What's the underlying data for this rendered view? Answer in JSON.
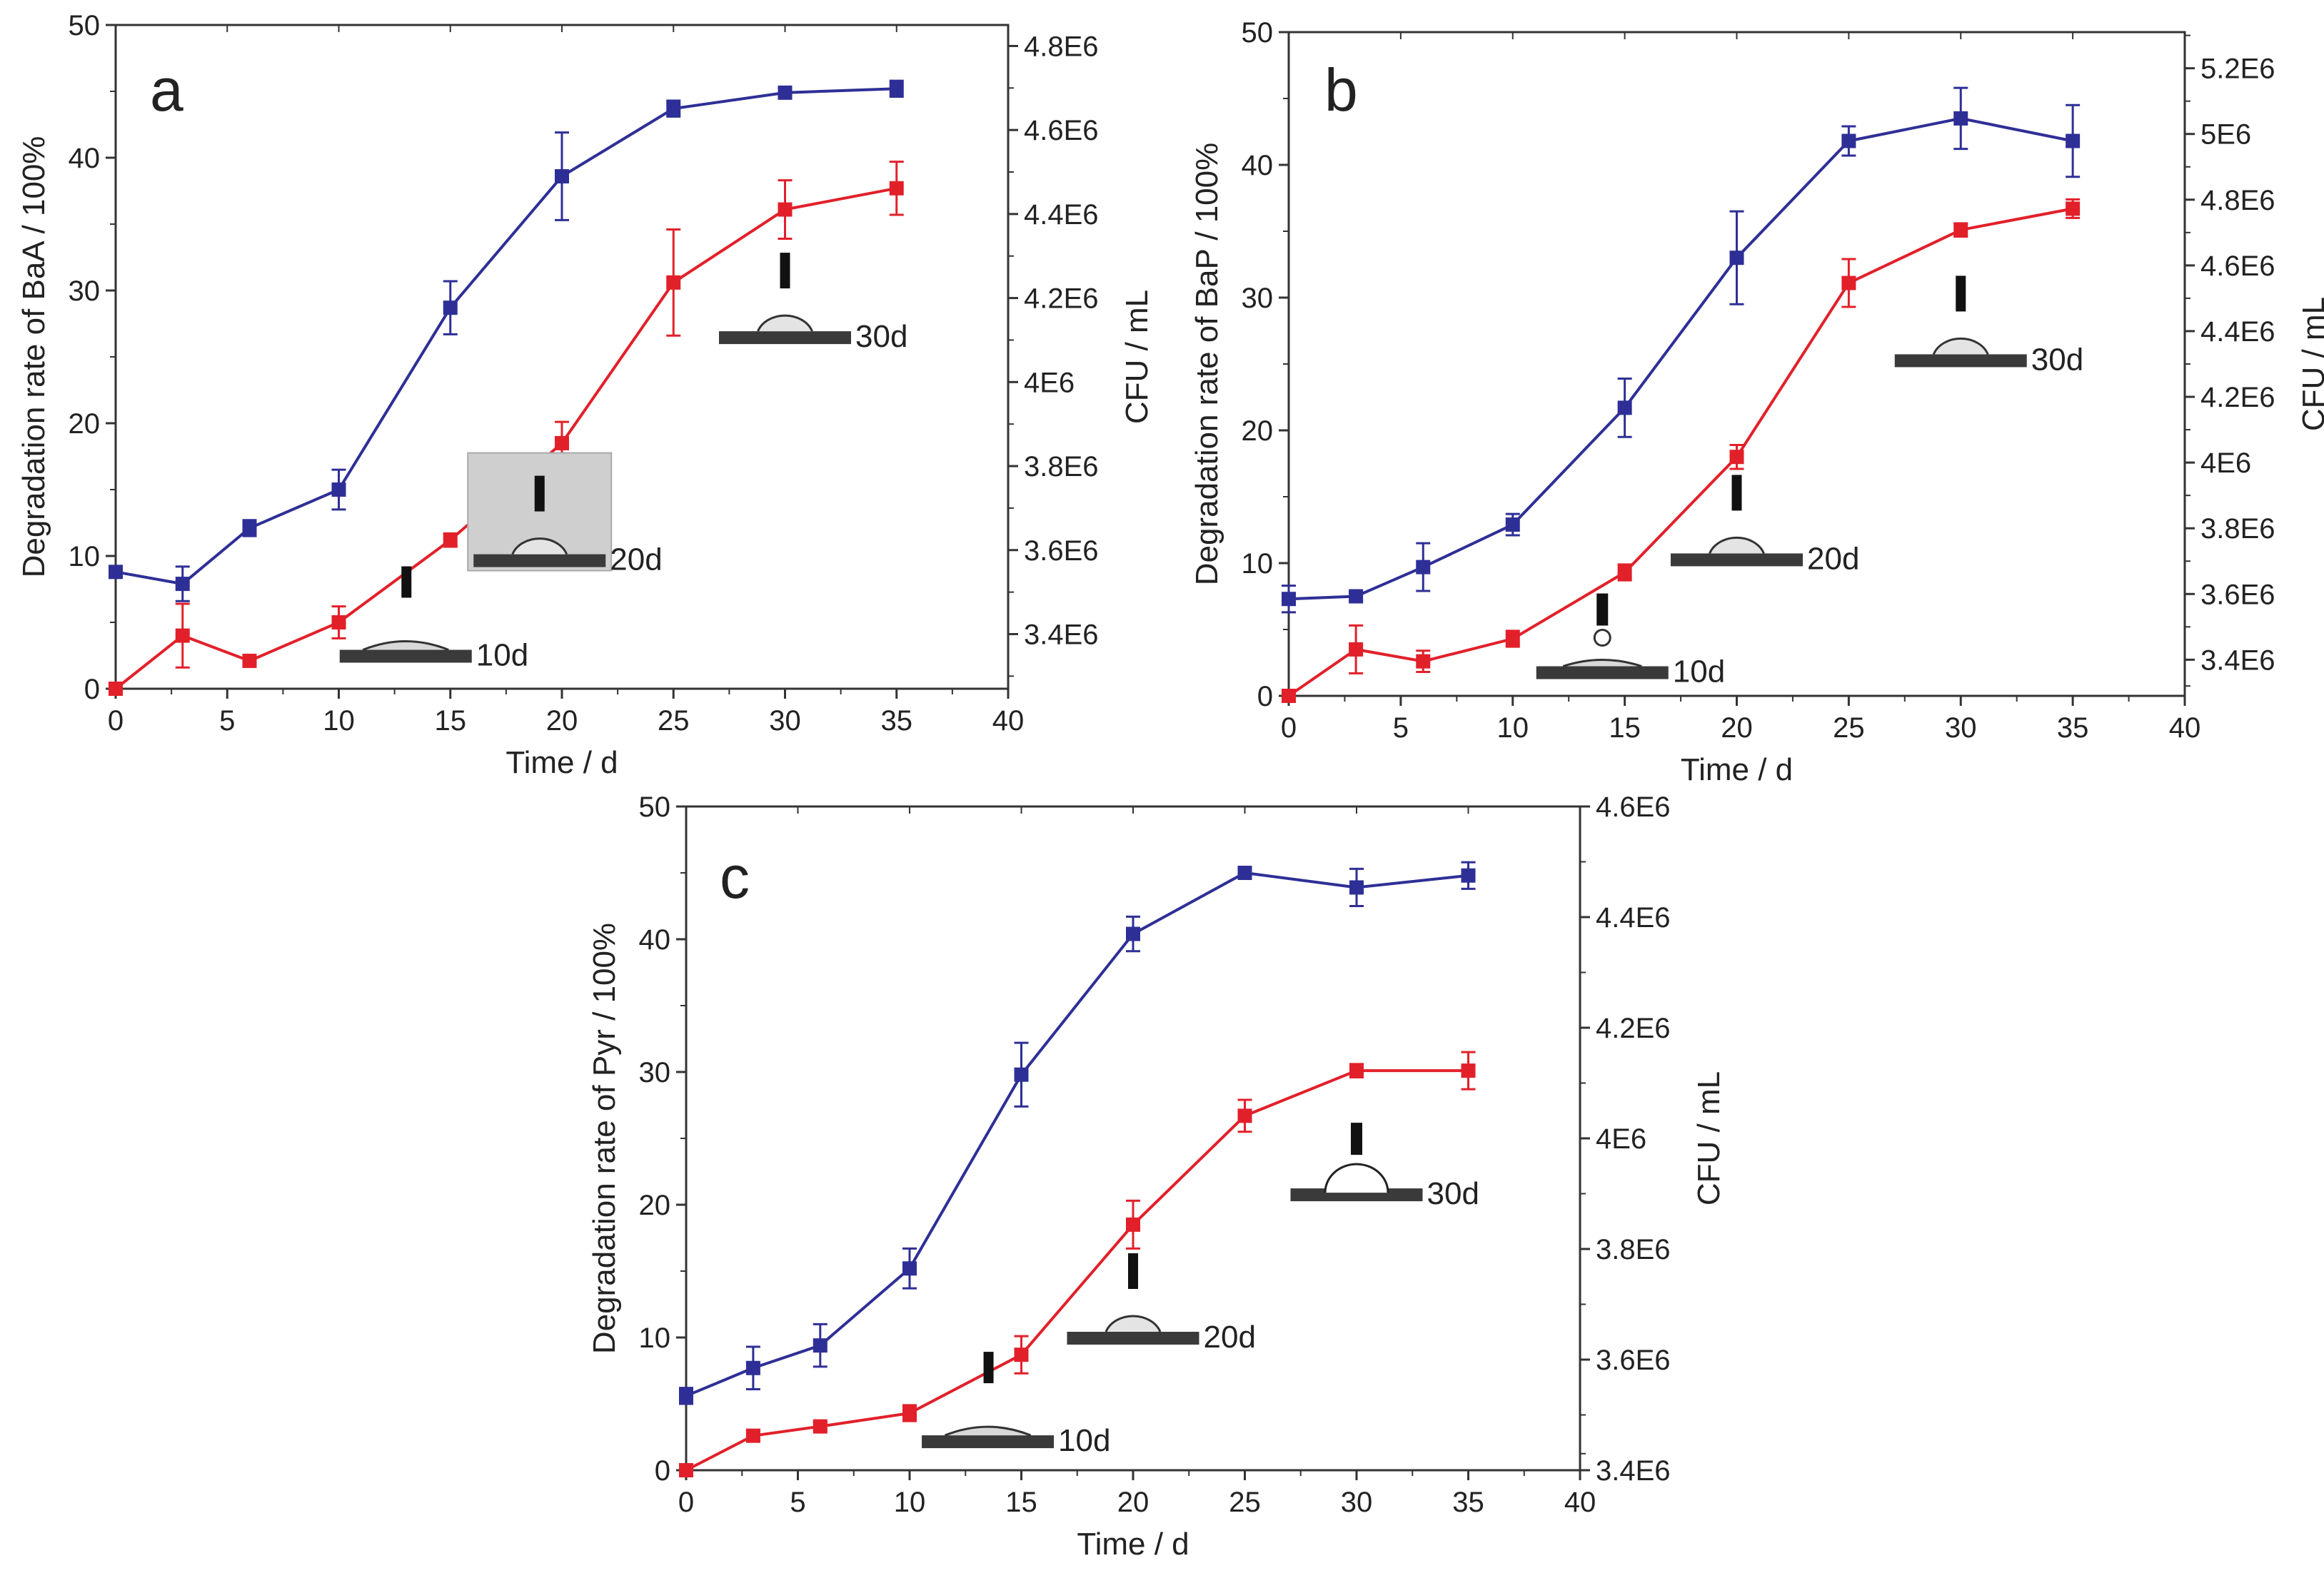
{
  "colors": {
    "blue": "#2e2f96",
    "red": "#e2202a",
    "axis": "#333333"
  },
  "chart_data": [
    {
      "type": "line",
      "panel": "a",
      "xlabel": "Time / d",
      "ylabel": "Degradation rate of BaA  / 100%",
      "y2label": "CFU / mL",
      "xlim": [
        0,
        40
      ],
      "ylim": [
        0,
        50
      ],
      "y2lim": [
        3270000.0,
        4850000.0
      ],
      "xticks": [
        0,
        5,
        10,
        15,
        20,
        25,
        30,
        35,
        40
      ],
      "xtick_labels": [
        "0",
        "5",
        "10",
        "15",
        "20",
        "25",
        "30",
        "35",
        "40"
      ],
      "yticks": [
        0,
        10,
        20,
        30,
        40,
        50
      ],
      "ytick_labels": [
        "0",
        "10",
        "20",
        "30",
        "40",
        "50"
      ],
      "y2ticks": [
        3400000.0,
        3600000.0,
        3800000.0,
        4000000.0,
        4200000.0,
        4400000.0,
        4600000.0,
        4800000.0
      ],
      "y2tick_labels": [
        "3.4E6",
        "3.6E6",
        "3.8E6",
        "4E6",
        "4.2E6",
        "4.4E6",
        "4.6E6",
        "4.8E6"
      ],
      "x": [
        0,
        3,
        6,
        10,
        15,
        20,
        25,
        30,
        35
      ],
      "series": [
        {
          "color": "blue",
          "axis": "left",
          "values": [
            8.8,
            7.9,
            12.1,
            15.0,
            28.7,
            38.6,
            43.7,
            44.9,
            45.2
          ],
          "errors": [
            0.3,
            1.3,
            0.6,
            1.5,
            2.0,
            3.3,
            0.6,
            0.3,
            0.6
          ]
        },
        {
          "color": "red",
          "axis": "left",
          "values": [
            0.0,
            4.0,
            2.1,
            5.0,
            11.2,
            18.5,
            30.6,
            36.1,
            37.7
          ],
          "errors": [
            0.3,
            2.4,
            0.4,
            1.2,
            0.5,
            1.6,
            4.0,
            2.2,
            2.0
          ]
        }
      ],
      "insets": [
        {
          "label": "10d",
          "x": 13,
          "y": 2.5,
          "shape": "flat"
        },
        {
          "label": "20d",
          "x": 19,
          "y": 9.7,
          "shape": "cap",
          "framed": true
        },
        {
          "label": "30d",
          "x": 30,
          "y": 26.5,
          "shape": "cap"
        }
      ]
    },
    {
      "type": "line",
      "panel": "b",
      "xlabel": "Time / d",
      "ylabel": "Degradation rate of BaP / 100%",
      "y2label": "CFU / mL",
      "xlim": [
        0,
        40
      ],
      "ylim": [
        0,
        50
      ],
      "y2lim": [
        3290000.0,
        5310000.0
      ],
      "xticks": [
        0,
        5,
        10,
        15,
        20,
        25,
        30,
        35,
        40
      ],
      "xtick_labels": [
        "0",
        "5",
        "10",
        "15",
        "20",
        "25",
        "30",
        "35",
        "40"
      ],
      "yticks": [
        0,
        10,
        20,
        30,
        40,
        50
      ],
      "ytick_labels": [
        "0",
        "10",
        "20",
        "30",
        "40",
        "50"
      ],
      "y2ticks": [
        3400000.0,
        3600000.0,
        3800000.0,
        4000000.0,
        4200000.0,
        4400000.0,
        4600000.0,
        4800000.0,
        5000000.0,
        5200000.0
      ],
      "y2tick_labels": [
        "3.4E6",
        "3.6E6",
        "3.8E6",
        "4E6",
        "4.2E6",
        "4.4E6",
        "4.6E6",
        "4.8E6",
        "5E6",
        "5.2E6"
      ],
      "x": [
        0,
        3,
        6,
        10,
        15,
        20,
        25,
        30,
        35
      ],
      "series": [
        {
          "color": "blue",
          "axis": "left",
          "values": [
            7.3,
            7.5,
            9.7,
            12.9,
            21.7,
            33.0,
            41.8,
            43.5,
            41.8
          ],
          "errors": [
            1.0,
            0.3,
            1.8,
            0.8,
            2.2,
            3.5,
            1.1,
            2.3,
            2.7
          ]
        },
        {
          "color": "red",
          "axis": "left",
          "values": [
            0.0,
            3.5,
            2.6,
            4.3,
            9.3,
            18.0,
            31.1,
            35.1,
            36.7
          ],
          "errors": [
            0.3,
            1.8,
            0.8,
            0.6,
            0.6,
            0.9,
            1.8,
            0.5,
            0.7
          ]
        }
      ],
      "insets": [
        {
          "label": "10d",
          "x": 14,
          "y": 1.8,
          "shape": "drop"
        },
        {
          "label": "20d",
          "x": 20,
          "y": 10.3,
          "shape": "cap"
        },
        {
          "label": "30d",
          "x": 30,
          "y": 25.3,
          "shape": "cap"
        }
      ]
    },
    {
      "type": "line",
      "panel": "c",
      "xlabel": "Time / d",
      "ylabel": "Degradation rate of Pyr / 100%",
      "y2label": "CFU / mL",
      "xlim": [
        0,
        40
      ],
      "ylim": [
        0,
        50
      ],
      "y2lim": [
        3400000.0,
        4600000.0
      ],
      "xticks": [
        0,
        5,
        10,
        15,
        20,
        25,
        30,
        35,
        40
      ],
      "xtick_labels": [
        "0",
        "5",
        "10",
        "15",
        "20",
        "25",
        "30",
        "35",
        "40"
      ],
      "yticks": [
        0,
        10,
        20,
        30,
        40,
        50
      ],
      "ytick_labels": [
        "0",
        "10",
        "20",
        "30",
        "40",
        "50"
      ],
      "y2ticks": [
        3400000.0,
        3600000.0,
        3800000.0,
        4000000.0,
        4200000.0,
        4400000.0,
        4600000.0
      ],
      "y2tick_labels": [
        "3.4E6",
        "3.6E6",
        "3.8E6",
        "4E6",
        "4.2E6",
        "4.4E6",
        "4.6E6"
      ],
      "x": [
        0,
        3,
        6,
        10,
        15,
        20,
        25,
        30,
        35
      ],
      "series": [
        {
          "color": "blue",
          "axis": "left",
          "values": [
            5.6,
            7.7,
            9.4,
            15.2,
            29.8,
            40.4,
            45.0,
            43.9,
            44.8
          ],
          "errors": [
            0.6,
            1.6,
            1.6,
            1.5,
            2.4,
            1.3,
            0.3,
            1.4,
            1.0
          ]
        },
        {
          "color": "red",
          "axis": "left",
          "values": [
            0.0,
            2.6,
            3.3,
            4.3,
            8.7,
            18.5,
            26.7,
            30.1,
            30.1
          ],
          "errors": [
            0.3,
            0.4,
            0.3,
            0.6,
            1.4,
            1.8,
            1.2,
            0.5,
            1.4
          ]
        }
      ],
      "insets": [
        {
          "label": "10d",
          "x": 13.5,
          "y": 2.2,
          "shape": "flat"
        },
        {
          "label": "20d",
          "x": 20,
          "y": 10.0,
          "shape": "cap"
        },
        {
          "label": "30d",
          "x": 30,
          "y": 20.8,
          "shape": "tallcap"
        }
      ]
    }
  ]
}
